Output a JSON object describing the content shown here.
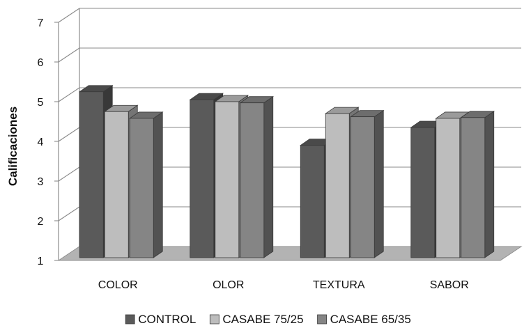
{
  "chart_data": {
    "type": "bar",
    "title": "",
    "xlabel": "",
    "ylabel": "Calificaciones",
    "ylim": [
      1,
      7
    ],
    "yticks": [
      1,
      2,
      3,
      4,
      5,
      6,
      7
    ],
    "grid": true,
    "legend_position": "bottom",
    "categories": [
      "COLOR",
      "OLOR",
      "TEXTURA",
      "SABOR"
    ],
    "series": [
      {
        "name": "CONTROL",
        "color": "#5a5a5a",
        "values": [
          5.25,
          5.05,
          3.9,
          4.35
        ]
      },
      {
        "name": "CASABE 75/25",
        "color": "#bdbdbd",
        "values": [
          4.75,
          5.0,
          4.7,
          4.58
        ]
      },
      {
        "name": "CASABE 65/35",
        "color": "#858585",
        "values": [
          4.58,
          4.97,
          4.62,
          4.6
        ]
      }
    ]
  }
}
